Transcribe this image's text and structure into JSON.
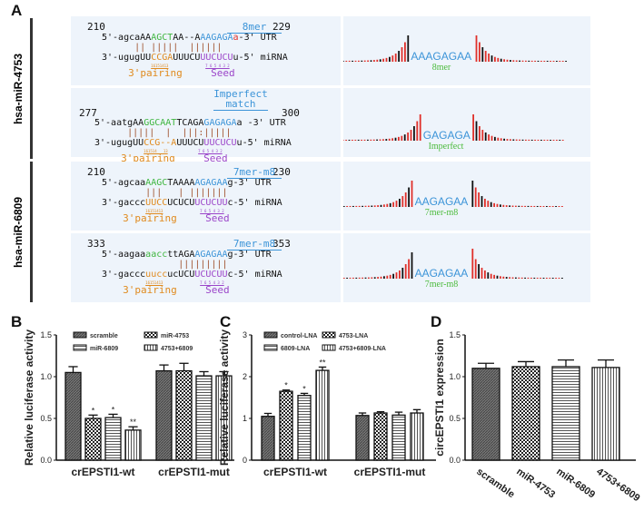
{
  "panel_labels": {
    "a": "A",
    "b": "B",
    "c": "C",
    "d": "D"
  },
  "groups": [
    {
      "label": "hsa-miR-4753"
    },
    {
      "label": "hsa-miR-6809"
    }
  ],
  "sites": [
    {
      "start": "210",
      "end": "229",
      "site_type": [
        "8mer"
      ],
      "utr": [
        [
          "5'-agcaAA",
          "#111"
        ],
        [
          "AGCT",
          "#3fb63f"
        ],
        [
          "AA--A",
          "#111"
        ],
        [
          "AAGAGA",
          "#3c94d8"
        ],
        [
          "a",
          "#e0302a"
        ],
        [
          "-3' UTR",
          "#111"
        ]
      ],
      "pairing": "      || |||||  ||||||",
      "mirna": [
        [
          "3'-ugugUU",
          "#111"
        ],
        [
          "CCGA",
          "#e08a1e"
        ],
        [
          "UUUCU",
          "#111"
        ],
        [
          "UUCUCU",
          "#9b45c9"
        ],
        [
          "u-5' miRNA",
          "#111"
        ]
      ],
      "nums3": "16151413",
      "nums_seed": "7 6 5 4 3 2",
      "pairing_label": "3'pairing",
      "seed_label": "Seed",
      "motif": "AAAGAGAA",
      "motif_label": "8mer"
    },
    {
      "start": "277",
      "end": "300",
      "site_type": [
        "Imperfect",
        "match"
      ],
      "utr": [
        [
          "5'-aatgAA",
          "#111"
        ],
        [
          "GGCAAT",
          "#3fb63f"
        ],
        [
          "TCAGA",
          "#111"
        ],
        [
          "GAGAGA",
          "#3c94d8"
        ],
        [
          "a -3' UTR",
          "#111"
        ]
      ],
      "pairing": "      |||||  |  |||:|||||",
      "mirna": [
        [
          "3'-ugugUU",
          "#111"
        ],
        [
          "CCG--A",
          "#e08a1e"
        ],
        [
          "UUUCU",
          "#111"
        ],
        [
          "UUCUCU",
          "#9b45c9"
        ],
        [
          "u-5' miRNA",
          "#111"
        ]
      ],
      "nums3": "161514   13",
      "nums_seed": "7 6 5 4 3 2",
      "pairing_label": "3'pairing",
      "seed_label": "Seed",
      "motif": "GAGAGA",
      "motif_label": "Imperfect"
    },
    {
      "start": "210",
      "end": "230",
      "site_type": [
        "7mer-m8"
      ],
      "utr": [
        [
          "5'-agcaa",
          "#111"
        ],
        [
          "AAGC",
          "#3fb63f"
        ],
        [
          "TAAAA",
          "#111"
        ],
        [
          "AGAGAA",
          "#3c94d8"
        ],
        [
          "g-3' UTR",
          "#111"
        ]
      ],
      "pairing": "        |||   | |||||||",
      "mirna": [
        [
          "3'-gaccc",
          "#111"
        ],
        [
          "UUCC",
          "#e08a1e"
        ],
        [
          "UCUCU",
          "#111"
        ],
        [
          "UCUCUU",
          "#9b45c9"
        ],
        [
          "c-5' miRNA",
          "#111"
        ]
      ],
      "nums3": "16151413",
      "nums_seed": "7 6 5 4 3 2",
      "pairing_label": "3'pairing",
      "seed_label": "Seed",
      "motif": "AAGAGAA",
      "motif_label": "7mer-m8"
    },
    {
      "start": "333",
      "end": "353",
      "site_type": [
        "7mer-m8"
      ],
      "utr": [
        [
          "5'-aagaa",
          "#111"
        ],
        [
          "aacc",
          "#3fb63f"
        ],
        [
          "ttAGA",
          "#111"
        ],
        [
          "AGAGAA",
          "#3c94d8"
        ],
        [
          "g-3' UTR",
          "#111"
        ]
      ],
      "pairing": "              |||||||||",
      "mirna": [
        [
          "3'-gaccc",
          "#111"
        ],
        [
          "uucc",
          "#e08a1e"
        ],
        [
          "ucUCU",
          "#111"
        ],
        [
          "UCUCUU",
          "#9b45c9"
        ],
        [
          "c-5' miRNA",
          "#111"
        ]
      ],
      "nums3": "16151413",
      "nums_seed": "7 6 5 4 3 2",
      "pairing_label": "3'pairing",
      "seed_label": "Seed",
      "motif": "AAGAGAA",
      "motif_label": "7mer-m8"
    }
  ],
  "chart_data": [
    {
      "panel": "B",
      "type": "bar",
      "ylabel": "Relative luciferase activity",
      "ylim": [
        0,
        1.5
      ],
      "yticks": [
        "0.0",
        "0.5",
        "1.0",
        "1.5"
      ],
      "categories": [
        "crEPSTI1-wt",
        "crEPSTI1-mut"
      ],
      "legend": "top-left",
      "series": [
        {
          "name": "scramble",
          "pattern": "diag",
          "values": [
            1.05,
            1.07
          ],
          "errors": [
            0.07,
            0.07
          ],
          "sig": [
            "",
            ""
          ]
        },
        {
          "name": "miR-4753",
          "pattern": "check",
          "values": [
            0.5,
            1.07
          ],
          "errors": [
            0.04,
            0.09
          ],
          "sig": [
            "*",
            ""
          ]
        },
        {
          "name": "miR-6809",
          "pattern": "hline",
          "values": [
            0.51,
            1.01
          ],
          "errors": [
            0.04,
            0.05
          ],
          "sig": [
            "*",
            ""
          ]
        },
        {
          "name": "4753+6809",
          "pattern": "vline",
          "values": [
            0.36,
            1.01
          ],
          "errors": [
            0.04,
            0.05
          ],
          "sig": [
            "**",
            ""
          ]
        }
      ]
    },
    {
      "panel": "C",
      "type": "bar",
      "ylabel": "Relative luciferase activity",
      "ylim": [
        0,
        3
      ],
      "yticks": [
        "0",
        "1",
        "2",
        "3"
      ],
      "categories": [
        "crEPSTI1-wt",
        "crEPSTI1-mut"
      ],
      "legend": "top-left",
      "series": [
        {
          "name": "control-LNA",
          "pattern": "diag",
          "values": [
            1.05,
            1.07
          ],
          "errors": [
            0.07,
            0.06
          ],
          "sig": [
            "",
            ""
          ]
        },
        {
          "name": "4753-LNA",
          "pattern": "check",
          "values": [
            1.65,
            1.13
          ],
          "errors": [
            0.03,
            0.03
          ],
          "sig": [
            "*",
            ""
          ]
        },
        {
          "name": "6809-LNA",
          "pattern": "hline",
          "values": [
            1.55,
            1.08
          ],
          "errors": [
            0.05,
            0.07
          ],
          "sig": [
            "*",
            ""
          ]
        },
        {
          "name": "4753+6809-LNA",
          "pattern": "vline",
          "values": [
            2.15,
            1.13
          ],
          "errors": [
            0.08,
            0.08
          ],
          "sig": [
            "**",
            ""
          ]
        }
      ]
    },
    {
      "panel": "D",
      "type": "bar",
      "ylabel": "circEPSTI1 expression",
      "ylim": [
        0,
        1.5
      ],
      "yticks": [
        "0.0",
        "0.5",
        "1.0",
        "1.5"
      ],
      "categories": [
        "scramble",
        "miR-4753",
        "miR-6809",
        "4753+6809"
      ],
      "patterns": [
        "diag",
        "check",
        "hline",
        "vline"
      ],
      "values": [
        1.1,
        1.12,
        1.12,
        1.11
      ],
      "errors": [
        0.06,
        0.06,
        0.08,
        0.09
      ]
    }
  ]
}
